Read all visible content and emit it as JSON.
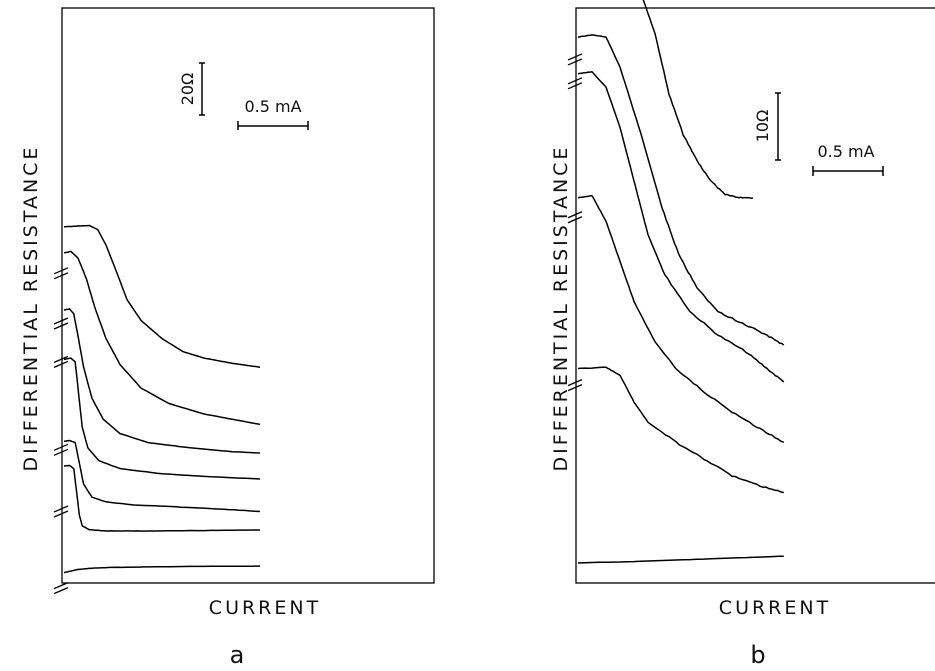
{
  "chart_data": [
    {
      "type": "line",
      "panel_label": "a",
      "xlabel": "CURRENT",
      "ylabel": "DIFFERENTIAL RESISTANCE",
      "scale_bars": {
        "resistance": "20Ω",
        "current": "0.5 mA"
      },
      "series": [
        {
          "points": [
            [
              0,
              4.0
            ],
            [
              0.05,
              4.6
            ],
            [
              0.1,
              5.2
            ],
            [
              0.2,
              5.7
            ],
            [
              0.35,
              6.0
            ],
            [
              0.6,
              6.2
            ],
            [
              1.0,
              6.4
            ],
            [
              1.4,
              6.5
            ]
          ]
        },
        {
          "points": [
            [
              0,
              45.0
            ],
            [
              0.04,
              45.2
            ],
            [
              0.07,
              44.0
            ],
            [
              0.09,
              35.0
            ],
            [
              0.11,
              26.0
            ],
            [
              0.13,
              22.0
            ],
            [
              0.18,
              20.5
            ],
            [
              0.3,
              20.0
            ],
            [
              0.6,
              20.0
            ],
            [
              1.0,
              20.2
            ],
            [
              1.4,
              20.4
            ]
          ]
        },
        {
          "points": [
            [
              0,
              54.5
            ],
            [
              0.04,
              54.8
            ],
            [
              0.08,
              54.0
            ],
            [
              0.11,
              46.0
            ],
            [
              0.14,
              38.0
            ],
            [
              0.2,
              33.0
            ],
            [
              0.3,
              31.2
            ],
            [
              0.5,
              30.0
            ],
            [
              0.8,
              29.3
            ],
            [
              1.1,
              28.5
            ],
            [
              1.4,
              27.5
            ]
          ]
        },
        {
          "points": [
            [
              0,
              86.0
            ],
            [
              0.05,
              86.5
            ],
            [
              0.08,
              85.0
            ],
            [
              0.1,
              75.0
            ],
            [
              0.13,
              60.0
            ],
            [
              0.17,
              52.0
            ],
            [
              0.25,
              47.0
            ],
            [
              0.4,
              44.0
            ],
            [
              0.7,
              42.0
            ],
            [
              1.0,
              41.0
            ],
            [
              1.4,
              40.0
            ]
          ]
        },
        {
          "points": [
            [
              0,
              105.0
            ],
            [
              0.04,
              105.4
            ],
            [
              0.07,
              103.5
            ],
            [
              0.1,
              95.0
            ],
            [
              0.14,
              83.0
            ],
            [
              0.2,
              71.0
            ],
            [
              0.28,
              63.0
            ],
            [
              0.4,
              57.5
            ],
            [
              0.6,
              54.0
            ],
            [
              0.9,
              52.0
            ],
            [
              1.2,
              50.5
            ],
            [
              1.4,
              50.0
            ]
          ]
        },
        {
          "points": [
            [
              0,
              127.0
            ],
            [
              0.05,
              127.5
            ],
            [
              0.1,
              125.0
            ],
            [
              0.16,
              117.0
            ],
            [
              0.22,
              106.0
            ],
            [
              0.3,
              94.0
            ],
            [
              0.4,
              84.0
            ],
            [
              0.55,
              75.0
            ],
            [
              0.75,
              69.0
            ],
            [
              1.0,
              65.0
            ],
            [
              1.2,
              63.0
            ],
            [
              1.4,
              61.0
            ]
          ]
        },
        {
          "points": [
            [
              0,
              137.0
            ],
            [
              0.1,
              137.3
            ],
            [
              0.18,
              137.5
            ],
            [
              0.24,
              136.0
            ],
            [
              0.3,
              130.0
            ],
            [
              0.38,
              119.0
            ],
            [
              0.45,
              109.0
            ],
            [
              0.55,
              101.0
            ],
            [
              0.7,
              94.0
            ],
            [
              0.85,
              89.0
            ],
            [
              1.0,
              86.5
            ],
            [
              1.2,
              84.5
            ],
            [
              1.4,
              83.0
            ]
          ]
        }
      ]
    },
    {
      "type": "line",
      "panel_label": "b",
      "xlabel": "CURRENT",
      "ylabel": "DIFFERENTIAL RESISTANCE",
      "scale_bars": {
        "resistance": "10Ω",
        "current": "0.5 mA"
      },
      "series": [
        {
          "points": [
            [
              0,
              3.0
            ],
            [
              0.4,
              3.2
            ],
            [
              0.8,
              3.5
            ],
            [
              1.2,
              3.8
            ],
            [
              1.47,
              4.0
            ]
          ]
        },
        {
          "points": [
            [
              0,
              32.0
            ],
            [
              0.2,
              32.2
            ],
            [
              0.3,
              31.0
            ],
            [
              0.4,
              27.0
            ],
            [
              0.5,
              24.0
            ],
            [
              0.7,
              21.0
            ],
            [
              0.9,
              18.5
            ],
            [
              1.1,
              16.0
            ],
            [
              1.3,
              14.5
            ],
            [
              1.47,
              13.5
            ]
          ]
        },
        {
          "points": [
            [
              0,
              57.5
            ],
            [
              0.1,
              57.8
            ],
            [
              0.2,
              54.0
            ],
            [
              0.3,
              48.0
            ],
            [
              0.4,
              42.0
            ],
            [
              0.55,
              36.0
            ],
            [
              0.7,
              32.0
            ],
            [
              0.9,
              28.5
            ],
            [
              1.1,
              25.5
            ],
            [
              1.3,
              23.0
            ],
            [
              1.47,
              21.0
            ]
          ]
        },
        {
          "points": [
            [
              0,
              76.0
            ],
            [
              0.1,
              76.3
            ],
            [
              0.2,
              74.0
            ],
            [
              0.3,
              68.0
            ],
            [
              0.4,
              60.0
            ],
            [
              0.5,
              52.0
            ],
            [
              0.62,
              46.0
            ],
            [
              0.8,
              40.5
            ],
            [
              1.0,
              37.0
            ],
            [
              1.2,
              34.5
            ],
            [
              1.35,
              32.0
            ],
            [
              1.47,
              30.0
            ]
          ]
        },
        {
          "points": [
            [
              0,
              81.5
            ],
            [
              0.1,
              81.8
            ],
            [
              0.2,
              81.5
            ],
            [
              0.3,
              77.0
            ],
            [
              0.45,
              67.0
            ],
            [
              0.6,
              56.0
            ],
            [
              0.72,
              49.0
            ],
            [
              0.85,
              44.0
            ],
            [
              1.0,
              40.5
            ],
            [
              1.2,
              38.5
            ],
            [
              1.35,
              37.0
            ],
            [
              1.47,
              35.5
            ]
          ]
        },
        {
          "points": [
            [
              0,
              91.0
            ],
            [
              0.2,
              91.2
            ],
            [
              0.35,
              91.0
            ],
            [
              0.45,
              88.0
            ],
            [
              0.55,
              82.0
            ],
            [
              0.65,
              73.0
            ],
            [
              0.75,
              67.0
            ],
            [
              0.85,
              63.0
            ],
            [
              0.95,
              60.0
            ],
            [
              1.05,
              58.0
            ],
            [
              1.15,
              57.5
            ],
            [
              1.25,
              57.5
            ]
          ]
        }
      ]
    }
  ],
  "colors": {
    "ink": "#000000",
    "background": "#ffffff"
  }
}
